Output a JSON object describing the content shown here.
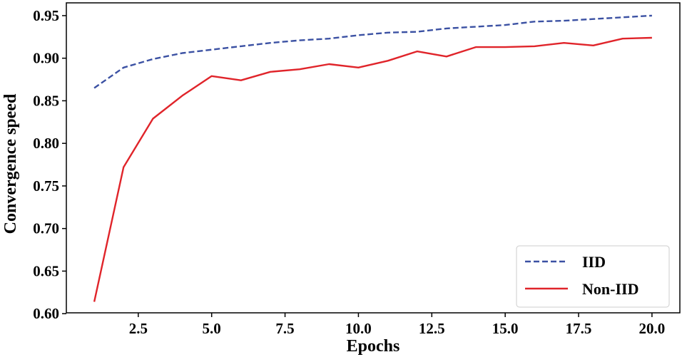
{
  "chart_data": {
    "type": "line",
    "title": "",
    "xlabel": "Epochs",
    "ylabel": "Convergence speed",
    "xlim": [
      0.05,
      20.95
    ],
    "ylim": [
      0.601,
      0.965
    ],
    "xticks": [
      2.5,
      5.0,
      7.5,
      10.0,
      12.5,
      15.0,
      17.5,
      20.0
    ],
    "xtick_labels": [
      "2.5",
      "5.0",
      "7.5",
      "10.0",
      "12.5",
      "15.0",
      "17.5",
      "20.0"
    ],
    "yticks": [
      0.6,
      0.65,
      0.7,
      0.75,
      0.8,
      0.85,
      0.9,
      0.95
    ],
    "ytick_labels": [
      "0.60",
      "0.65",
      "0.70",
      "0.75",
      "0.80",
      "0.85",
      "0.90",
      "0.95"
    ],
    "grid": false,
    "legend_position": "lower-right",
    "x": [
      1,
      2,
      3,
      4,
      5,
      6,
      7,
      8,
      9,
      10,
      11,
      12,
      13,
      14,
      15,
      16,
      17,
      18,
      19,
      20
    ],
    "series": [
      {
        "name": "IID",
        "color": "#3b51a3",
        "style": "dashed",
        "values": [
          0.865,
          0.889,
          0.899,
          0.906,
          0.91,
          0.914,
          0.918,
          0.921,
          0.923,
          0.927,
          0.93,
          0.931,
          0.935,
          0.937,
          0.939,
          0.943,
          0.944,
          0.946,
          0.948,
          0.95
        ]
      },
      {
        "name": "Non-IID",
        "color": "#e0242a",
        "style": "solid",
        "values": [
          0.614,
          0.772,
          0.829,
          0.856,
          0.879,
          0.874,
          0.884,
          0.887,
          0.893,
          0.889,
          0.897,
          0.908,
          0.902,
          0.913,
          0.913,
          0.914,
          0.918,
          0.915,
          0.923,
          0.924
        ]
      }
    ]
  }
}
